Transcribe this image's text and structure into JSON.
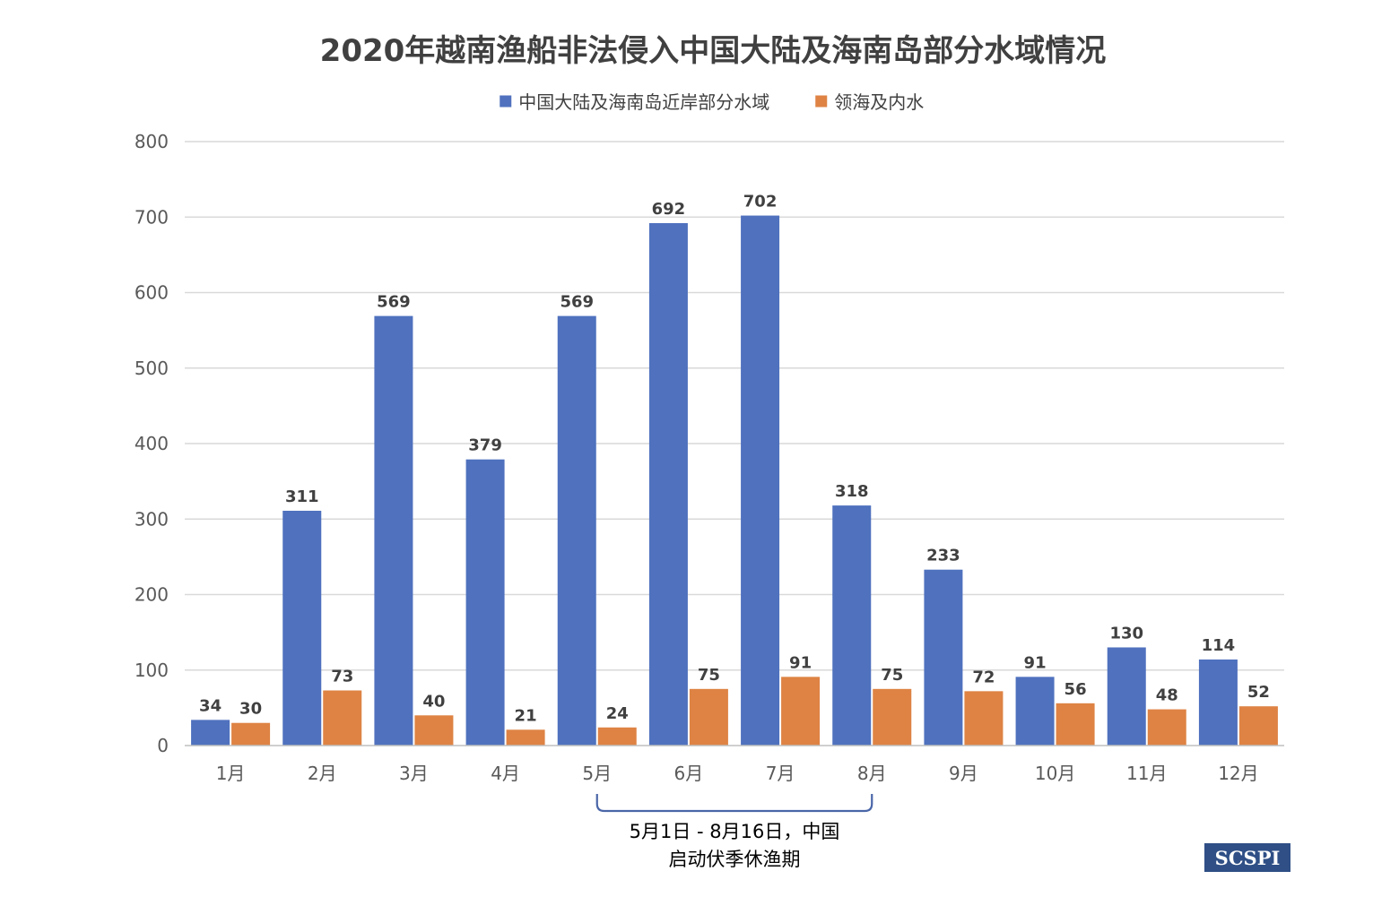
{
  "chart_data": {
    "type": "bar",
    "title": "2020年越南渔船非法侵入中国大陆及海南岛部分水域情况",
    "categories": [
      "1月",
      "2月",
      "3月",
      "4月",
      "5月",
      "6月",
      "7月",
      "8月",
      "9月",
      "10月",
      "11月",
      "12月"
    ],
    "series": [
      {
        "name": "中国大陆及海南岛近岸部分水域",
        "color": "#4f71be",
        "values": [
          34,
          311,
          569,
          379,
          569,
          692,
          702,
          318,
          233,
          91,
          130,
          114
        ]
      },
      {
        "name": "领海及内水",
        "color": "#de8344",
        "values": [
          30,
          73,
          40,
          21,
          24,
          75,
          91,
          75,
          72,
          56,
          48,
          52
        ]
      }
    ],
    "ylim": [
      0,
      800
    ],
    "yticks": [
      0,
      100,
      200,
      300,
      400,
      500,
      600,
      700,
      800
    ],
    "grid": true,
    "legend_position": "top-center",
    "data_labels": true,
    "annotation": {
      "from_category": "5月",
      "to_category": "8月",
      "lines": [
        "5月1日 - 8月16日，中国",
        "启动伏季休渔期"
      ]
    },
    "logo": "SCSPI"
  },
  "colors": {
    "gridline": "#d9d9d9",
    "axis_line": "#bfbfbf",
    "bracket": "#4a66a8",
    "logo_background": "#2f4f86"
  }
}
